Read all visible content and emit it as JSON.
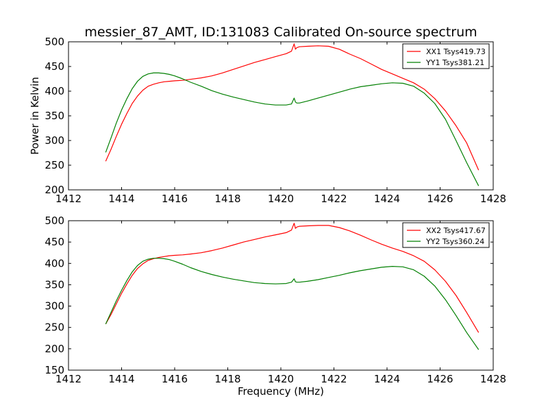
{
  "chart_data": [
    {
      "type": "line",
      "title": "messier_87_AMT, ID:131083 Calibrated On-source spectrum",
      "xlabel": "",
      "ylabel": "Power in Kelvin",
      "xlim": [
        1412,
        1428
      ],
      "ylim": [
        200,
        500
      ],
      "xticks": [
        1412,
        1414,
        1416,
        1418,
        1420,
        1422,
        1424,
        1426,
        1428
      ],
      "yticks": [
        200,
        250,
        300,
        350,
        400,
        450,
        500
      ],
      "xtick_labels": [
        "1412",
        "1414",
        "1416",
        "1418",
        "1420",
        "1422",
        "1424",
        "1426",
        "1428"
      ],
      "ytick_labels": [
        "200",
        "250",
        "300",
        "350",
        "400",
        "450",
        "500"
      ],
      "grid": false,
      "legend_position": "top-right",
      "series": [
        {
          "name": "XX1 Tsys419.73",
          "color": "#ff0000",
          "x": [
            1413.4,
            1413.6,
            1413.8,
            1414.0,
            1414.2,
            1414.4,
            1414.6,
            1414.8,
            1415.0,
            1415.2,
            1415.4,
            1415.6,
            1415.8,
            1416.0,
            1416.3,
            1416.6,
            1417.0,
            1417.4,
            1417.8,
            1418.2,
            1418.6,
            1419.0,
            1419.4,
            1419.8,
            1420.2,
            1420.4,
            1420.5,
            1420.55,
            1420.6,
            1420.7,
            1421.0,
            1421.4,
            1421.8,
            1422.2,
            1422.6,
            1423.0,
            1423.4,
            1423.8,
            1424.2,
            1424.6,
            1425.0,
            1425.4,
            1425.8,
            1426.2,
            1426.6,
            1427.0,
            1427.45
          ],
          "y": [
            258,
            282,
            308,
            333,
            355,
            375,
            390,
            402,
            410,
            414,
            417,
            419,
            420,
            421,
            422,
            424,
            427,
            431,
            437,
            444,
            451,
            458,
            464,
            470,
            476,
            481,
            496,
            485,
            488,
            490,
            491,
            492,
            491,
            485,
            475,
            466,
            455,
            444,
            435,
            426,
            417,
            404,
            385,
            360,
            330,
            295,
            240
          ]
        },
        {
          "name": "YY1 Tsys381.21",
          "color": "#007f00",
          "x": [
            1413.4,
            1413.6,
            1413.8,
            1414.0,
            1414.2,
            1414.4,
            1414.6,
            1414.8,
            1415.0,
            1415.2,
            1415.4,
            1415.6,
            1415.8,
            1416.0,
            1416.3,
            1416.6,
            1417.0,
            1417.4,
            1417.8,
            1418.2,
            1418.6,
            1419.0,
            1419.4,
            1419.8,
            1420.2,
            1420.4,
            1420.5,
            1420.55,
            1420.6,
            1420.7,
            1421.0,
            1421.4,
            1421.8,
            1422.2,
            1422.6,
            1423.0,
            1423.4,
            1423.8,
            1424.2,
            1424.6,
            1425.0,
            1425.4,
            1425.8,
            1426.2,
            1426.6,
            1427.0,
            1427.45
          ],
          "y": [
            276,
            305,
            335,
            362,
            385,
            405,
            420,
            430,
            435,
            437,
            437,
            436,
            434,
            431,
            425,
            418,
            410,
            401,
            394,
            388,
            383,
            378,
            374,
            372,
            372,
            374,
            386,
            378,
            376,
            376,
            380,
            386,
            392,
            398,
            404,
            409,
            412,
            415,
            417,
            416,
            410,
            396,
            375,
            343,
            300,
            255,
            208
          ]
        }
      ]
    },
    {
      "type": "line",
      "title": "",
      "xlabel": "Frequency (MHz)",
      "ylabel": "",
      "xlim": [
        1412,
        1428
      ],
      "ylim": [
        150,
        500
      ],
      "xticks": [
        1412,
        1414,
        1416,
        1418,
        1420,
        1422,
        1424,
        1426,
        1428
      ],
      "yticks": [
        150,
        200,
        250,
        300,
        350,
        400,
        450,
        500
      ],
      "xtick_labels": [
        "1412",
        "1414",
        "1416",
        "1418",
        "1420",
        "1422",
        "1424",
        "1426",
        "1428"
      ],
      "ytick_labels": [
        "150",
        "200",
        "250",
        "300",
        "350",
        "400",
        "450",
        "500"
      ],
      "grid": false,
      "legend_position": "top-right",
      "series": [
        {
          "name": "XX2 Tsys417.67",
          "color": "#ff0000",
          "x": [
            1413.4,
            1413.6,
            1413.8,
            1414.0,
            1414.2,
            1414.4,
            1414.6,
            1414.8,
            1415.0,
            1415.2,
            1415.4,
            1415.6,
            1415.8,
            1416.0,
            1416.3,
            1416.6,
            1417.0,
            1417.4,
            1417.8,
            1418.2,
            1418.6,
            1419.0,
            1419.4,
            1419.8,
            1420.2,
            1420.4,
            1420.5,
            1420.55,
            1420.6,
            1420.7,
            1421.0,
            1421.4,
            1421.8,
            1422.2,
            1422.6,
            1423.0,
            1423.4,
            1423.8,
            1424.2,
            1424.6,
            1425.0,
            1425.4,
            1425.8,
            1426.2,
            1426.6,
            1427.0,
            1427.45
          ],
          "y": [
            258,
            280,
            305,
            330,
            352,
            372,
            388,
            399,
            407,
            411,
            414,
            416,
            418,
            419,
            420,
            422,
            425,
            430,
            436,
            443,
            450,
            456,
            462,
            467,
            472,
            478,
            494,
            482,
            485,
            487,
            488,
            489,
            489,
            484,
            476,
            466,
            455,
            445,
            436,
            428,
            418,
            405,
            385,
            358,
            325,
            285,
            238
          ]
        },
        {
          "name": "YY2 Tsys360.24",
          "color": "#007f00",
          "x": [
            1413.4,
            1413.6,
            1413.8,
            1414.0,
            1414.2,
            1414.4,
            1414.6,
            1414.8,
            1415.0,
            1415.2,
            1415.4,
            1415.6,
            1415.8,
            1416.0,
            1416.3,
            1416.6,
            1417.0,
            1417.4,
            1417.8,
            1418.2,
            1418.6,
            1419.0,
            1419.4,
            1419.8,
            1420.2,
            1420.4,
            1420.5,
            1420.55,
            1420.6,
            1420.7,
            1421.0,
            1421.4,
            1421.8,
            1422.2,
            1422.6,
            1423.0,
            1423.4,
            1423.8,
            1424.2,
            1424.6,
            1425.0,
            1425.4,
            1425.8,
            1426.2,
            1426.6,
            1427.0,
            1427.45
          ],
          "y": [
            258,
            285,
            312,
            337,
            360,
            380,
            395,
            405,
            410,
            412,
            412,
            411,
            409,
            405,
            398,
            390,
            381,
            374,
            368,
            363,
            359,
            355,
            353,
            352,
            353,
            356,
            364,
            357,
            356,
            356,
            358,
            362,
            367,
            372,
            378,
            383,
            387,
            391,
            393,
            392,
            385,
            370,
            347,
            315,
            278,
            238,
            198
          ]
        }
      ]
    }
  ]
}
